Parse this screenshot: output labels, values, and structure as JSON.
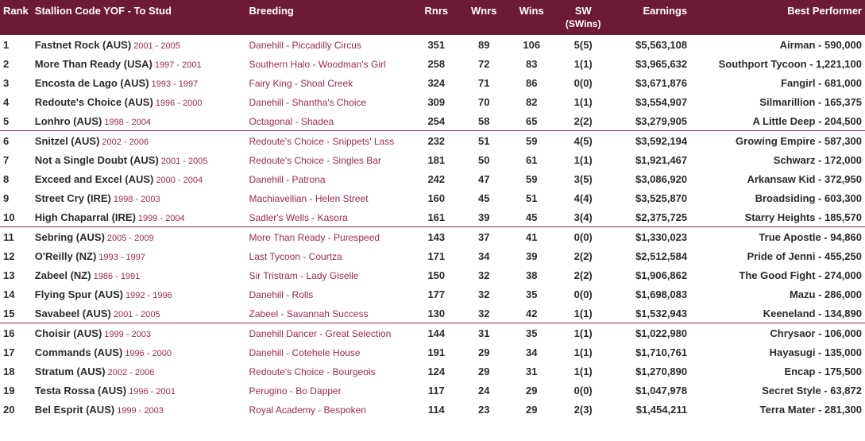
{
  "table": {
    "headers": {
      "rank": "Rank",
      "stallion": "Stallion Code YOF - To Stud",
      "breeding": "Breeding",
      "rnrs": "Rnrs",
      "wnrs": "Wnrs",
      "wins": "Wins",
      "sw": "SW",
      "sw_sub": "(SWins)",
      "earnings": "Earnings",
      "bestperf": "Best Performer"
    },
    "colors": {
      "header_bg": "#6d1a35",
      "header_text": "#ffffff",
      "accent_text": "#9a2a4a",
      "body_text": "#2b2b2b",
      "separator": "#9a2a4a"
    },
    "rows": [
      {
        "rank": "1",
        "name": "Fastnet Rock (AUS)",
        "years": "2001 - 2005",
        "breeding": "Danehill - Piccadilly Circus",
        "rnrs": "351",
        "wnrs": "89",
        "wins": "106",
        "sw": "5(5)",
        "earnings": "$5,563,108",
        "bestperf": "Airman - 590,000",
        "sep": false
      },
      {
        "rank": "2",
        "name": "More Than Ready (USA)",
        "years": "1997 - 2001",
        "breeding": "Southern Halo - Woodman's Girl",
        "rnrs": "258",
        "wnrs": "72",
        "wins": "83",
        "sw": "1(1)",
        "earnings": "$3,965,632",
        "bestperf": "Southport Tycoon - 1,221,100",
        "sep": false
      },
      {
        "rank": "3",
        "name": "Encosta de Lago (AUS)",
        "years": "1993 - 1997",
        "breeding": "Fairy King - Shoal Creek",
        "rnrs": "324",
        "wnrs": "71",
        "wins": "86",
        "sw": "0(0)",
        "earnings": "$3,671,876",
        "bestperf": "Fangirl - 681,000",
        "sep": false
      },
      {
        "rank": "4",
        "name": "Redoute's Choice (AUS)",
        "years": "1996 - 2000",
        "breeding": "Danehill - Shantha's Choice",
        "rnrs": "309",
        "wnrs": "70",
        "wins": "82",
        "sw": "1(1)",
        "earnings": "$3,554,907",
        "bestperf": "Silmarillion - 165,375",
        "sep": false
      },
      {
        "rank": "5",
        "name": "Lonhro (AUS)",
        "years": "1998 - 2004",
        "breeding": "Octagonal - Shadea",
        "rnrs": "254",
        "wnrs": "58",
        "wins": "65",
        "sw": "2(2)",
        "earnings": "$3,279,905",
        "bestperf": "A Little Deep - 204,500",
        "sep": true
      },
      {
        "rank": "6",
        "name": "Snitzel (AUS)",
        "years": "2002 - 2006",
        "breeding": "Redoute's Choice - Snippets' Lass",
        "rnrs": "232",
        "wnrs": "51",
        "wins": "59",
        "sw": "4(5)",
        "earnings": "$3,592,194",
        "bestperf": "Growing Empire - 587,300",
        "sep": false
      },
      {
        "rank": "7",
        "name": "Not a Single Doubt (AUS)",
        "years": "2001 - 2005",
        "breeding": "Redoute's Choice - Singles Bar",
        "rnrs": "181",
        "wnrs": "50",
        "wins": "61",
        "sw": "1(1)",
        "earnings": "$1,921,467",
        "bestperf": "Schwarz - 172,000",
        "sep": false
      },
      {
        "rank": "8",
        "name": "Exceed and Excel (AUS)",
        "years": "2000 - 2004",
        "breeding": "Danehill - Patrona",
        "rnrs": "242",
        "wnrs": "47",
        "wins": "59",
        "sw": "3(5)",
        "earnings": "$3,086,920",
        "bestperf": "Arkansaw Kid - 372,950",
        "sep": false
      },
      {
        "rank": "9",
        "name": "Street Cry (IRE)",
        "years": "1998 - 2003",
        "breeding": "Machiavellian - Helen Street",
        "rnrs": "160",
        "wnrs": "45",
        "wins": "51",
        "sw": "4(4)",
        "earnings": "$3,525,870",
        "bestperf": "Broadsiding - 603,300",
        "sep": false
      },
      {
        "rank": "10",
        "name": "High Chaparral (IRE)",
        "years": "1999 - 2004",
        "breeding": "Sadler's Wells - Kasora",
        "rnrs": "161",
        "wnrs": "39",
        "wins": "45",
        "sw": "3(4)",
        "earnings": "$2,375,725",
        "bestperf": "Starry Heights - 185,570",
        "sep": true
      },
      {
        "rank": "11",
        "name": "Sebring (AUS)",
        "years": "2005 - 2009",
        "breeding": "More Than Ready - Purespeed",
        "rnrs": "143",
        "wnrs": "37",
        "wins": "41",
        "sw": "0(0)",
        "earnings": "$1,330,023",
        "bestperf": "True Apostle - 94,860",
        "sep": false
      },
      {
        "rank": "12",
        "name": "O'Reilly (NZ)",
        "years": "1993 - 1997",
        "breeding": "Last Tycoon - Courtza",
        "rnrs": "171",
        "wnrs": "34",
        "wins": "39",
        "sw": "2(2)",
        "earnings": "$2,512,584",
        "bestperf": "Pride of Jenni - 455,250",
        "sep": false
      },
      {
        "rank": "13",
        "name": "Zabeel (NZ)",
        "years": "1986 - 1991",
        "breeding": "Sir Tristram - Lady Giselle",
        "rnrs": "150",
        "wnrs": "32",
        "wins": "38",
        "sw": "2(2)",
        "earnings": "$1,906,862",
        "bestperf": "The Good Fight - 274,000",
        "sep": false
      },
      {
        "rank": "14",
        "name": "Flying Spur (AUS)",
        "years": "1992 - 1996",
        "breeding": "Danehill - Rolls",
        "rnrs": "177",
        "wnrs": "32",
        "wins": "35",
        "sw": "0(0)",
        "earnings": "$1,698,083",
        "bestperf": "Mazu - 286,000",
        "sep": false
      },
      {
        "rank": "15",
        "name": "Savabeel (AUS)",
        "years": "2001 - 2005",
        "breeding": "Zabeel - Savannah Success",
        "rnrs": "130",
        "wnrs": "32",
        "wins": "42",
        "sw": "1(1)",
        "earnings": "$1,532,943",
        "bestperf": "Keeneland - 134,890",
        "sep": true
      },
      {
        "rank": "16",
        "name": "Choisir (AUS)",
        "years": "1999 - 2003",
        "breeding": "Danehill Dancer - Great Selection",
        "rnrs": "144",
        "wnrs": "31",
        "wins": "35",
        "sw": "1(1)",
        "earnings": "$1,022,980",
        "bestperf": "Chrysaor - 106,000",
        "sep": false
      },
      {
        "rank": "17",
        "name": "Commands (AUS)",
        "years": "1996 - 2000",
        "breeding": "Danehill - Cotehele House",
        "rnrs": "191",
        "wnrs": "29",
        "wins": "34",
        "sw": "1(1)",
        "earnings": "$1,710,761",
        "bestperf": "Hayasugi - 135,000",
        "sep": false
      },
      {
        "rank": "18",
        "name": "Stratum (AUS)",
        "years": "2002 - 2006",
        "breeding": "Redoute's Choice - Bourgeois",
        "rnrs": "124",
        "wnrs": "29",
        "wins": "31",
        "sw": "1(1)",
        "earnings": "$1,270,890",
        "bestperf": "Encap - 175,500",
        "sep": false
      },
      {
        "rank": "19",
        "name": "Testa Rossa (AUS)",
        "years": "1996 - 2001",
        "breeding": "Perugino - Bo Dapper",
        "rnrs": "117",
        "wnrs": "24",
        "wins": "29",
        "sw": "0(0)",
        "earnings": "$1,047,978",
        "bestperf": "Secret Style - 63,872",
        "sep": false
      },
      {
        "rank": "20",
        "name": "Bel Esprit (AUS)",
        "years": "1999 - 2003",
        "breeding": "Royal Academy - Bespoken",
        "rnrs": "114",
        "wnrs": "23",
        "wins": "29",
        "sw": "2(3)",
        "earnings": "$1,454,211",
        "bestperf": "Terra Mater - 281,300",
        "sep": false
      }
    ]
  }
}
